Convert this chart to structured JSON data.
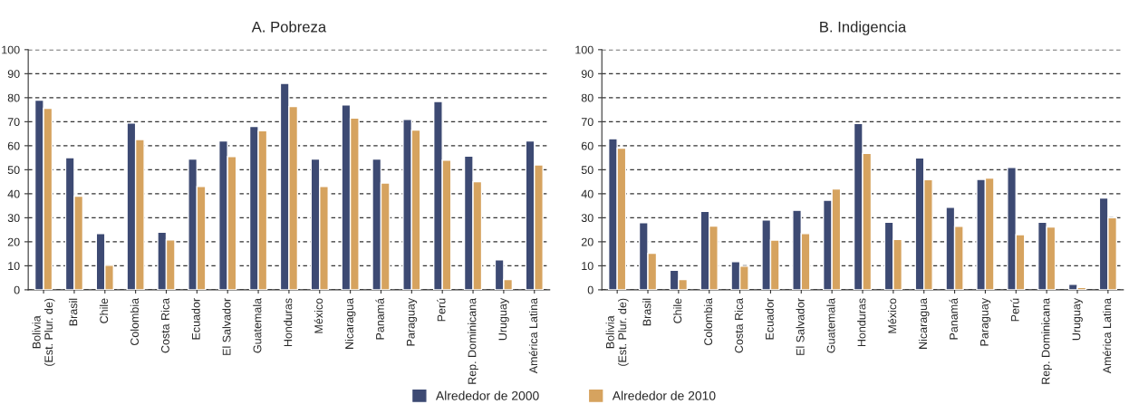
{
  "chart_data": [
    {
      "type": "bar",
      "title": "A. Pobreza",
      "categories": [
        "Bolivia\n(Est. Plur. de)",
        "Brasil",
        "Chile",
        "Colombia",
        "Costa Rica",
        "Ecuador",
        "El Salvador",
        "Guatemala",
        "Honduras",
        "México",
        "Nicaragua",
        "Panamá",
        "Paraguay",
        "Perú",
        "Rep. Dominicana",
        "Uruguay",
        "América Latina"
      ],
      "series": [
        {
          "name": "Alrededor de 2000",
          "color": "#3d4a73",
          "values": [
            79,
            55,
            23.4,
            69.5,
            24,
            54.5,
            62,
            68,
            86,
            54.5,
            77,
            54.5,
            71,
            78.4,
            55.7,
            12.5,
            62
          ]
        },
        {
          "name": "Alrededor de 2010",
          "color": "#d6a35f",
          "values": [
            75.6,
            39,
            10.2,
            62.6,
            20.8,
            43,
            55.5,
            66.2,
            76.3,
            43,
            71.5,
            44.5,
            66.5,
            54,
            45,
            4.3,
            52
          ]
        }
      ],
      "ylim": [
        0,
        100
      ],
      "yticks": [
        0,
        10,
        20,
        30,
        40,
        50,
        60,
        70,
        80,
        90,
        100
      ],
      "grid": "y",
      "line_style": "dashed",
      "legend": "bottom"
    },
    {
      "type": "bar",
      "title": "B. Indigencia",
      "categories": [
        "Bolivia\n(Est. Plur. de)",
        "Brasil",
        "Chile",
        "Colombia",
        "Costa Rica",
        "Ecuador",
        "El Salvador",
        "Guatemala",
        "Honduras",
        "México",
        "Nicaragua",
        "Panamá",
        "Paraguay",
        "Perú",
        "Rep. Dominicana",
        "Uruguay",
        "América Latina"
      ],
      "series": [
        {
          "name": "Alrededor de 2000",
          "color": "#3d4a73",
          "values": [
            62.9,
            28,
            8.1,
            32.7,
            11.7,
            29.1,
            33.1,
            37.3,
            69.3,
            28.1,
            54.9,
            34.4,
            46,
            51,
            28.1,
            2.3,
            38.2
          ]
        },
        {
          "name": "Alrededor de 2010",
          "color": "#d6a35f",
          "values": [
            59,
            15.2,
            4.3,
            26.5,
            9.8,
            20.7,
            23.4,
            42,
            56.8,
            21,
            45.9,
            26.4,
            46.5,
            23,
            26.2,
            1.0,
            30
          ]
        }
      ],
      "ylim": [
        0,
        100
      ],
      "yticks": [
        0,
        10,
        20,
        30,
        40,
        50,
        60,
        70,
        80,
        90,
        100
      ],
      "grid": "y",
      "line_style": "dashed",
      "legend": "bottom"
    }
  ]
}
